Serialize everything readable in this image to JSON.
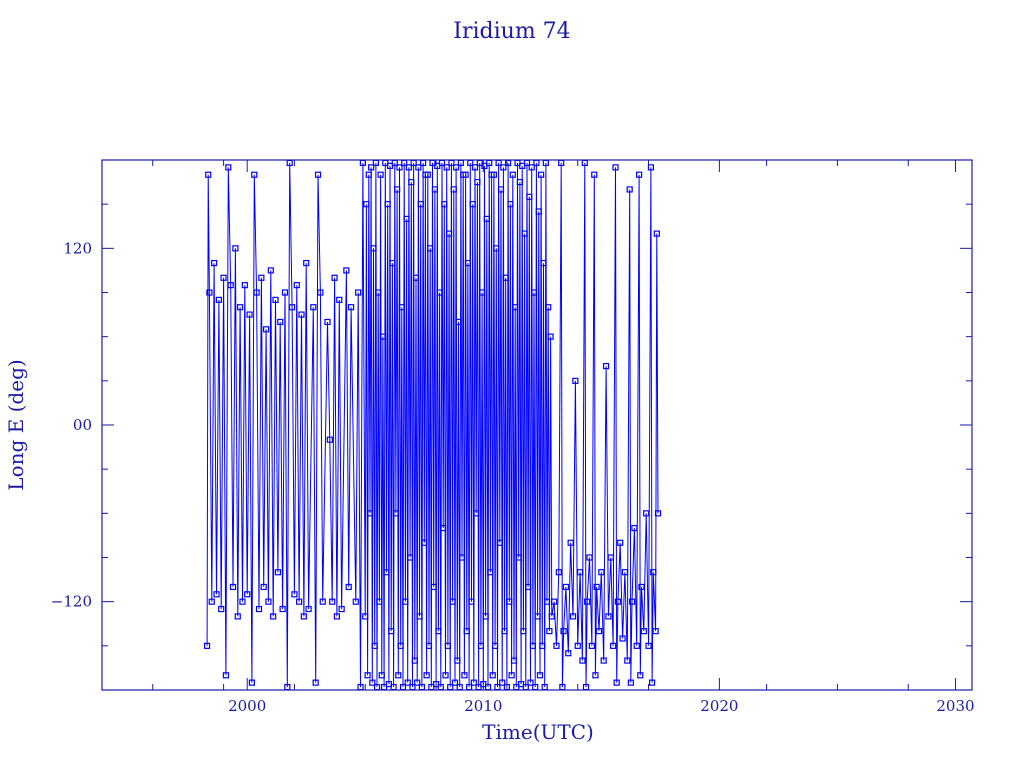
{
  "chart_data": {
    "type": "line",
    "title": "Iridium 74",
    "xlabel": "Time(UTC)",
    "ylabel": "Long E (deg)",
    "xlim": [
      1993.85,
      2030.7
    ],
    "ylim": [
      -180,
      180
    ],
    "xticks": [
      2000,
      2010,
      2020,
      2030
    ],
    "xtick_labels": [
      "2000",
      "2010",
      "2020",
      "2030"
    ],
    "xminor": [
      1996,
      1999,
      2002,
      2005,
      2008,
      2011,
      2014,
      2017,
      2022,
      2025,
      2028
    ],
    "yticks": [
      -120,
      0,
      120
    ],
    "ytick_labels": [
      "−120",
      "00",
      "120"
    ],
    "yminor": [
      -150,
      -90,
      -60,
      -30,
      30,
      60,
      90,
      150
    ],
    "grid": false,
    "marker": "square",
    "color": "#0000ff",
    "axis_color": "#1a1aa6",
    "series": [
      {
        "points": [
          [
            1998.3,
            -150
          ],
          [
            1998.35,
            170
          ],
          [
            1998.4,
            90
          ],
          [
            1998.5,
            -120
          ],
          [
            1998.6,
            110
          ],
          [
            1998.7,
            -115
          ],
          [
            1998.8,
            85
          ],
          [
            1998.9,
            -125
          ],
          [
            1999.0,
            100
          ],
          [
            1999.1,
            -170
          ],
          [
            1999.2,
            175
          ],
          [
            1999.3,
            95
          ],
          [
            1999.4,
            -110
          ],
          [
            1999.5,
            120
          ],
          [
            1999.6,
            -130
          ],
          [
            1999.7,
            80
          ],
          [
            1999.8,
            -120
          ],
          [
            1999.9,
            95
          ],
          [
            2000.0,
            -115
          ],
          [
            2000.1,
            75
          ],
          [
            2000.2,
            -175
          ],
          [
            2000.3,
            170
          ],
          [
            2000.4,
            90
          ],
          [
            2000.5,
            -125
          ],
          [
            2000.6,
            100
          ],
          [
            2000.7,
            -110
          ],
          [
            2000.8,
            65
          ],
          [
            2000.9,
            -120
          ],
          [
            2001.0,
            105
          ],
          [
            2001.1,
            -130
          ],
          [
            2001.2,
            85
          ],
          [
            2001.3,
            -100
          ],
          [
            2001.4,
            70
          ],
          [
            2001.5,
            -125
          ],
          [
            2001.6,
            90
          ],
          [
            2001.7,
            -178
          ],
          [
            2001.8,
            178
          ],
          [
            2001.9,
            80
          ],
          [
            2002.0,
            -115
          ],
          [
            2002.1,
            95
          ],
          [
            2002.2,
            -120
          ],
          [
            2002.3,
            75
          ],
          [
            2002.4,
            -130
          ],
          [
            2002.5,
            110
          ],
          [
            2002.6,
            -125
          ],
          [
            2002.8,
            80
          ],
          [
            2002.9,
            -175
          ],
          [
            2003.0,
            170
          ],
          [
            2003.1,
            90
          ],
          [
            2003.2,
            -120
          ],
          [
            2003.4,
            70
          ],
          [
            2003.5,
            -10
          ],
          [
            2003.6,
            -120
          ],
          [
            2003.7,
            100
          ],
          [
            2003.8,
            -130
          ],
          [
            2003.9,
            85
          ],
          [
            2004.0,
            -125
          ],
          [
            2004.2,
            105
          ],
          [
            2004.3,
            -110
          ],
          [
            2004.4,
            80
          ],
          [
            2004.6,
            -120
          ],
          [
            2004.7,
            90
          ],
          [
            2004.8,
            -178
          ],
          [
            2004.9,
            178
          ],
          [
            2005.0,
            -130
          ],
          [
            2005.05,
            150
          ],
          [
            2005.1,
            -170
          ],
          [
            2005.15,
            170
          ],
          [
            2005.2,
            -60
          ],
          [
            2005.25,
            175
          ],
          [
            2005.3,
            -175
          ],
          [
            2005.35,
            120
          ],
          [
            2005.4,
            -150
          ],
          [
            2005.45,
            178
          ],
          [
            2005.5,
            -178
          ],
          [
            2005.55,
            90
          ],
          [
            2005.6,
            -120
          ],
          [
            2005.65,
            170
          ],
          [
            2005.7,
            -170
          ],
          [
            2005.75,
            60
          ],
          [
            2005.8,
            -178
          ],
          [
            2005.85,
            178
          ],
          [
            2005.9,
            -100
          ],
          [
            2005.95,
            150
          ],
          [
            2006.0,
            -176
          ],
          [
            2006.05,
            176
          ],
          [
            2006.1,
            -140
          ],
          [
            2006.15,
            110
          ],
          [
            2006.2,
            -178
          ],
          [
            2006.25,
            178
          ],
          [
            2006.3,
            -60
          ],
          [
            2006.35,
            160
          ],
          [
            2006.4,
            -170
          ],
          [
            2006.45,
            175
          ],
          [
            2006.5,
            -150
          ],
          [
            2006.55,
            80
          ],
          [
            2006.6,
            -178
          ],
          [
            2006.65,
            178
          ],
          [
            2006.7,
            -120
          ],
          [
            2006.75,
            140
          ],
          [
            2006.8,
            -175
          ],
          [
            2006.85,
            175
          ],
          [
            2006.9,
            -90
          ],
          [
            2006.95,
            165
          ],
          [
            2007.0,
            -178
          ],
          [
            2007.05,
            178
          ],
          [
            2007.1,
            -160
          ],
          [
            2007.15,
            100
          ],
          [
            2007.2,
            -175
          ],
          [
            2007.25,
            175
          ],
          [
            2007.3,
            -130
          ],
          [
            2007.35,
            150
          ],
          [
            2007.4,
            -178
          ],
          [
            2007.45,
            178
          ],
          [
            2007.5,
            -80
          ],
          [
            2007.55,
            170
          ],
          [
            2007.6,
            -170
          ],
          [
            2007.65,
            170
          ],
          [
            2007.7,
            -150
          ],
          [
            2007.75,
            120
          ],
          [
            2007.8,
            -178
          ],
          [
            2007.85,
            178
          ],
          [
            2007.9,
            -110
          ],
          [
            2007.95,
            160
          ],
          [
            2008.0,
            -176
          ],
          [
            2008.05,
            176
          ],
          [
            2008.1,
            -140
          ],
          [
            2008.15,
            90
          ],
          [
            2008.2,
            -178
          ],
          [
            2008.25,
            178
          ],
          [
            2008.3,
            -70
          ],
          [
            2008.35,
            150
          ],
          [
            2008.4,
            -170
          ],
          [
            2008.45,
            175
          ],
          [
            2008.5,
            -150
          ],
          [
            2008.55,
            130
          ],
          [
            2008.6,
            -178
          ],
          [
            2008.65,
            178
          ],
          [
            2008.7,
            -120
          ],
          [
            2008.75,
            160
          ],
          [
            2008.8,
            -175
          ],
          [
            2008.85,
            175
          ],
          [
            2008.9,
            -160
          ],
          [
            2008.95,
            70
          ],
          [
            2009.0,
            -178
          ],
          [
            2009.05,
            178
          ],
          [
            2009.1,
            -90
          ],
          [
            2009.15,
            170
          ],
          [
            2009.2,
            -170
          ],
          [
            2009.25,
            170
          ],
          [
            2009.3,
            -140
          ],
          [
            2009.35,
            110
          ],
          [
            2009.4,
            -178
          ],
          [
            2009.45,
            178
          ],
          [
            2009.5,
            -120
          ],
          [
            2009.55,
            150
          ],
          [
            2009.6,
            -175
          ],
          [
            2009.65,
            175
          ],
          [
            2009.7,
            -60
          ],
          [
            2009.75,
            165
          ],
          [
            2009.8,
            -178
          ],
          [
            2009.85,
            178
          ],
          [
            2009.9,
            -150
          ],
          [
            2009.95,
            90
          ],
          [
            2010.0,
            -176
          ],
          [
            2010.05,
            176
          ],
          [
            2010.1,
            -130
          ],
          [
            2010.15,
            140
          ],
          [
            2010.2,
            -178
          ],
          [
            2010.25,
            178
          ],
          [
            2010.3,
            -100
          ],
          [
            2010.35,
            170
          ],
          [
            2010.4,
            -170
          ],
          [
            2010.45,
            170
          ],
          [
            2010.5,
            -150
          ],
          [
            2010.55,
            120
          ],
          [
            2010.6,
            -178
          ],
          [
            2010.65,
            178
          ],
          [
            2010.7,
            -80
          ],
          [
            2010.75,
            160
          ],
          [
            2010.8,
            -175
          ],
          [
            2010.85,
            175
          ],
          [
            2010.9,
            -140
          ],
          [
            2010.95,
            100
          ],
          [
            2011.0,
            -178
          ],
          [
            2011.05,
            178
          ],
          [
            2011.1,
            -120
          ],
          [
            2011.15,
            150
          ],
          [
            2011.2,
            -170
          ],
          [
            2011.25,
            170
          ],
          [
            2011.3,
            -160
          ],
          [
            2011.35,
            80
          ],
          [
            2011.4,
            -178
          ],
          [
            2011.45,
            178
          ],
          [
            2011.5,
            -90
          ],
          [
            2011.55,
            165
          ],
          [
            2011.6,
            -176
          ],
          [
            2011.65,
            176
          ],
          [
            2011.7,
            -140
          ],
          [
            2011.75,
            130
          ],
          [
            2011.8,
            -178
          ],
          [
            2011.85,
            178
          ],
          [
            2011.9,
            -110
          ],
          [
            2011.95,
            155
          ],
          [
            2012.0,
            -175
          ],
          [
            2012.05,
            175
          ],
          [
            2012.1,
            -150
          ],
          [
            2012.15,
            90
          ],
          [
            2012.2,
            -178
          ],
          [
            2012.25,
            178
          ],
          [
            2012.3,
            -130
          ],
          [
            2012.35,
            145
          ],
          [
            2012.4,
            -170
          ],
          [
            2012.45,
            170
          ],
          [
            2012.5,
            -150
          ],
          [
            2012.55,
            110
          ],
          [
            2012.6,
            -178
          ],
          [
            2012.65,
            178
          ],
          [
            2012.7,
            -120
          ],
          [
            2012.75,
            80
          ],
          [
            2012.8,
            -140
          ],
          [
            2012.85,
            60
          ],
          [
            2012.9,
            -130
          ],
          [
            2013.0,
            -120
          ],
          [
            2013.1,
            -150
          ],
          [
            2013.2,
            -100
          ],
          [
            2013.3,
            178
          ],
          [
            2013.35,
            -178
          ],
          [
            2013.4,
            -140
          ],
          [
            2013.5,
            -110
          ],
          [
            2013.6,
            -155
          ],
          [
            2013.7,
            -80
          ],
          [
            2013.8,
            -130
          ],
          [
            2013.9,
            30
          ],
          [
            2014.0,
            -150
          ],
          [
            2014.1,
            -100
          ],
          [
            2014.2,
            -160
          ],
          [
            2014.3,
            178
          ],
          [
            2014.35,
            -178
          ],
          [
            2014.4,
            -120
          ],
          [
            2014.5,
            -90
          ],
          [
            2014.6,
            -150
          ],
          [
            2014.7,
            170
          ],
          [
            2014.75,
            -170
          ],
          [
            2014.8,
            -110
          ],
          [
            2014.9,
            -140
          ],
          [
            2015.0,
            -100
          ],
          [
            2015.1,
            -160
          ],
          [
            2015.2,
            40
          ],
          [
            2015.3,
            -130
          ],
          [
            2015.4,
            -90
          ],
          [
            2015.5,
            -150
          ],
          [
            2015.6,
            175
          ],
          [
            2015.65,
            -175
          ],
          [
            2015.7,
            -120
          ],
          [
            2015.8,
            -80
          ],
          [
            2015.9,
            -145
          ],
          [
            2016.0,
            -100
          ],
          [
            2016.1,
            -160
          ],
          [
            2016.2,
            160
          ],
          [
            2016.25,
            -175
          ],
          [
            2016.3,
            -120
          ],
          [
            2016.4,
            -70
          ],
          [
            2016.5,
            -150
          ],
          [
            2016.6,
            170
          ],
          [
            2016.65,
            -170
          ],
          [
            2016.7,
            -110
          ],
          [
            2016.8,
            -140
          ],
          [
            2016.9,
            -60
          ],
          [
            2017.0,
            -150
          ],
          [
            2017.1,
            175
          ],
          [
            2017.15,
            -175
          ],
          [
            2017.2,
            -100
          ],
          [
            2017.3,
            -140
          ],
          [
            2017.35,
            130
          ],
          [
            2017.4,
            -60
          ]
        ]
      }
    ]
  }
}
